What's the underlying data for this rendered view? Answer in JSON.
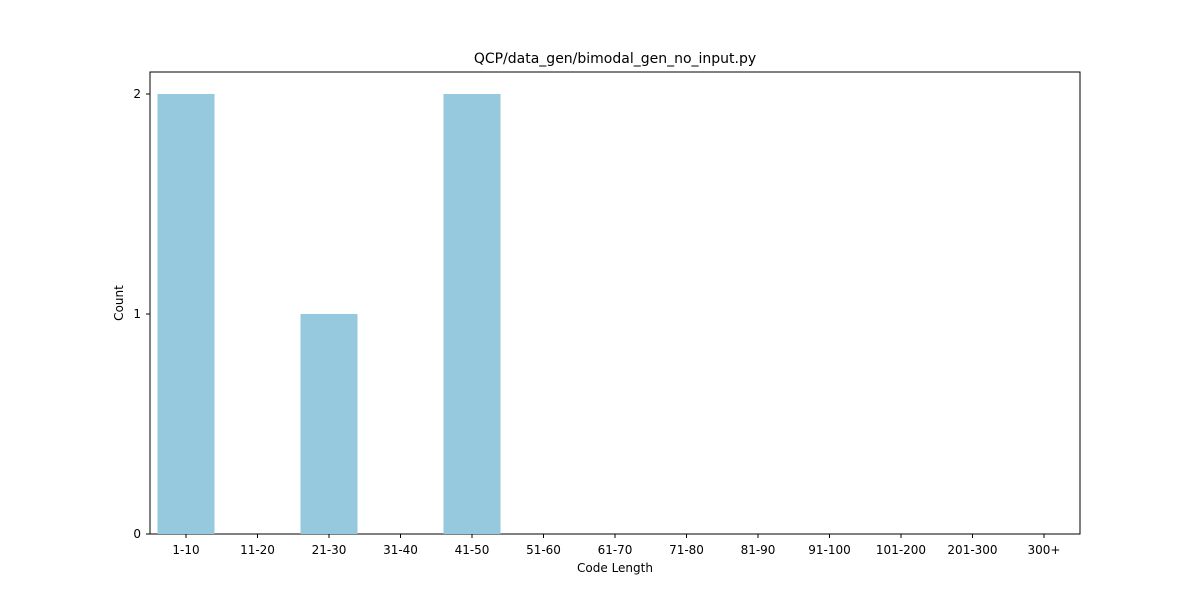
{
  "chart_data": {
    "type": "bar",
    "title": "QCP/data_gen/bimodal_gen_no_input.py",
    "xlabel": "Code Length",
    "ylabel": "Count",
    "categories": [
      "1-10",
      "11-20",
      "21-30",
      "31-40",
      "41-50",
      "51-60",
      "61-70",
      "71-80",
      "81-90",
      "91-100",
      "101-200",
      "201-300",
      "300+"
    ],
    "values": [
      2,
      0,
      1,
      0,
      2,
      0,
      0,
      0,
      0,
      0,
      0,
      0,
      0
    ],
    "yticks": [
      0,
      1,
      2
    ],
    "ylim": [
      0,
      2.1
    ],
    "grid": false,
    "legend": "none",
    "colors": {
      "bar": "#96c9dd",
      "axis": "#000000",
      "background": "#ffffff"
    }
  }
}
